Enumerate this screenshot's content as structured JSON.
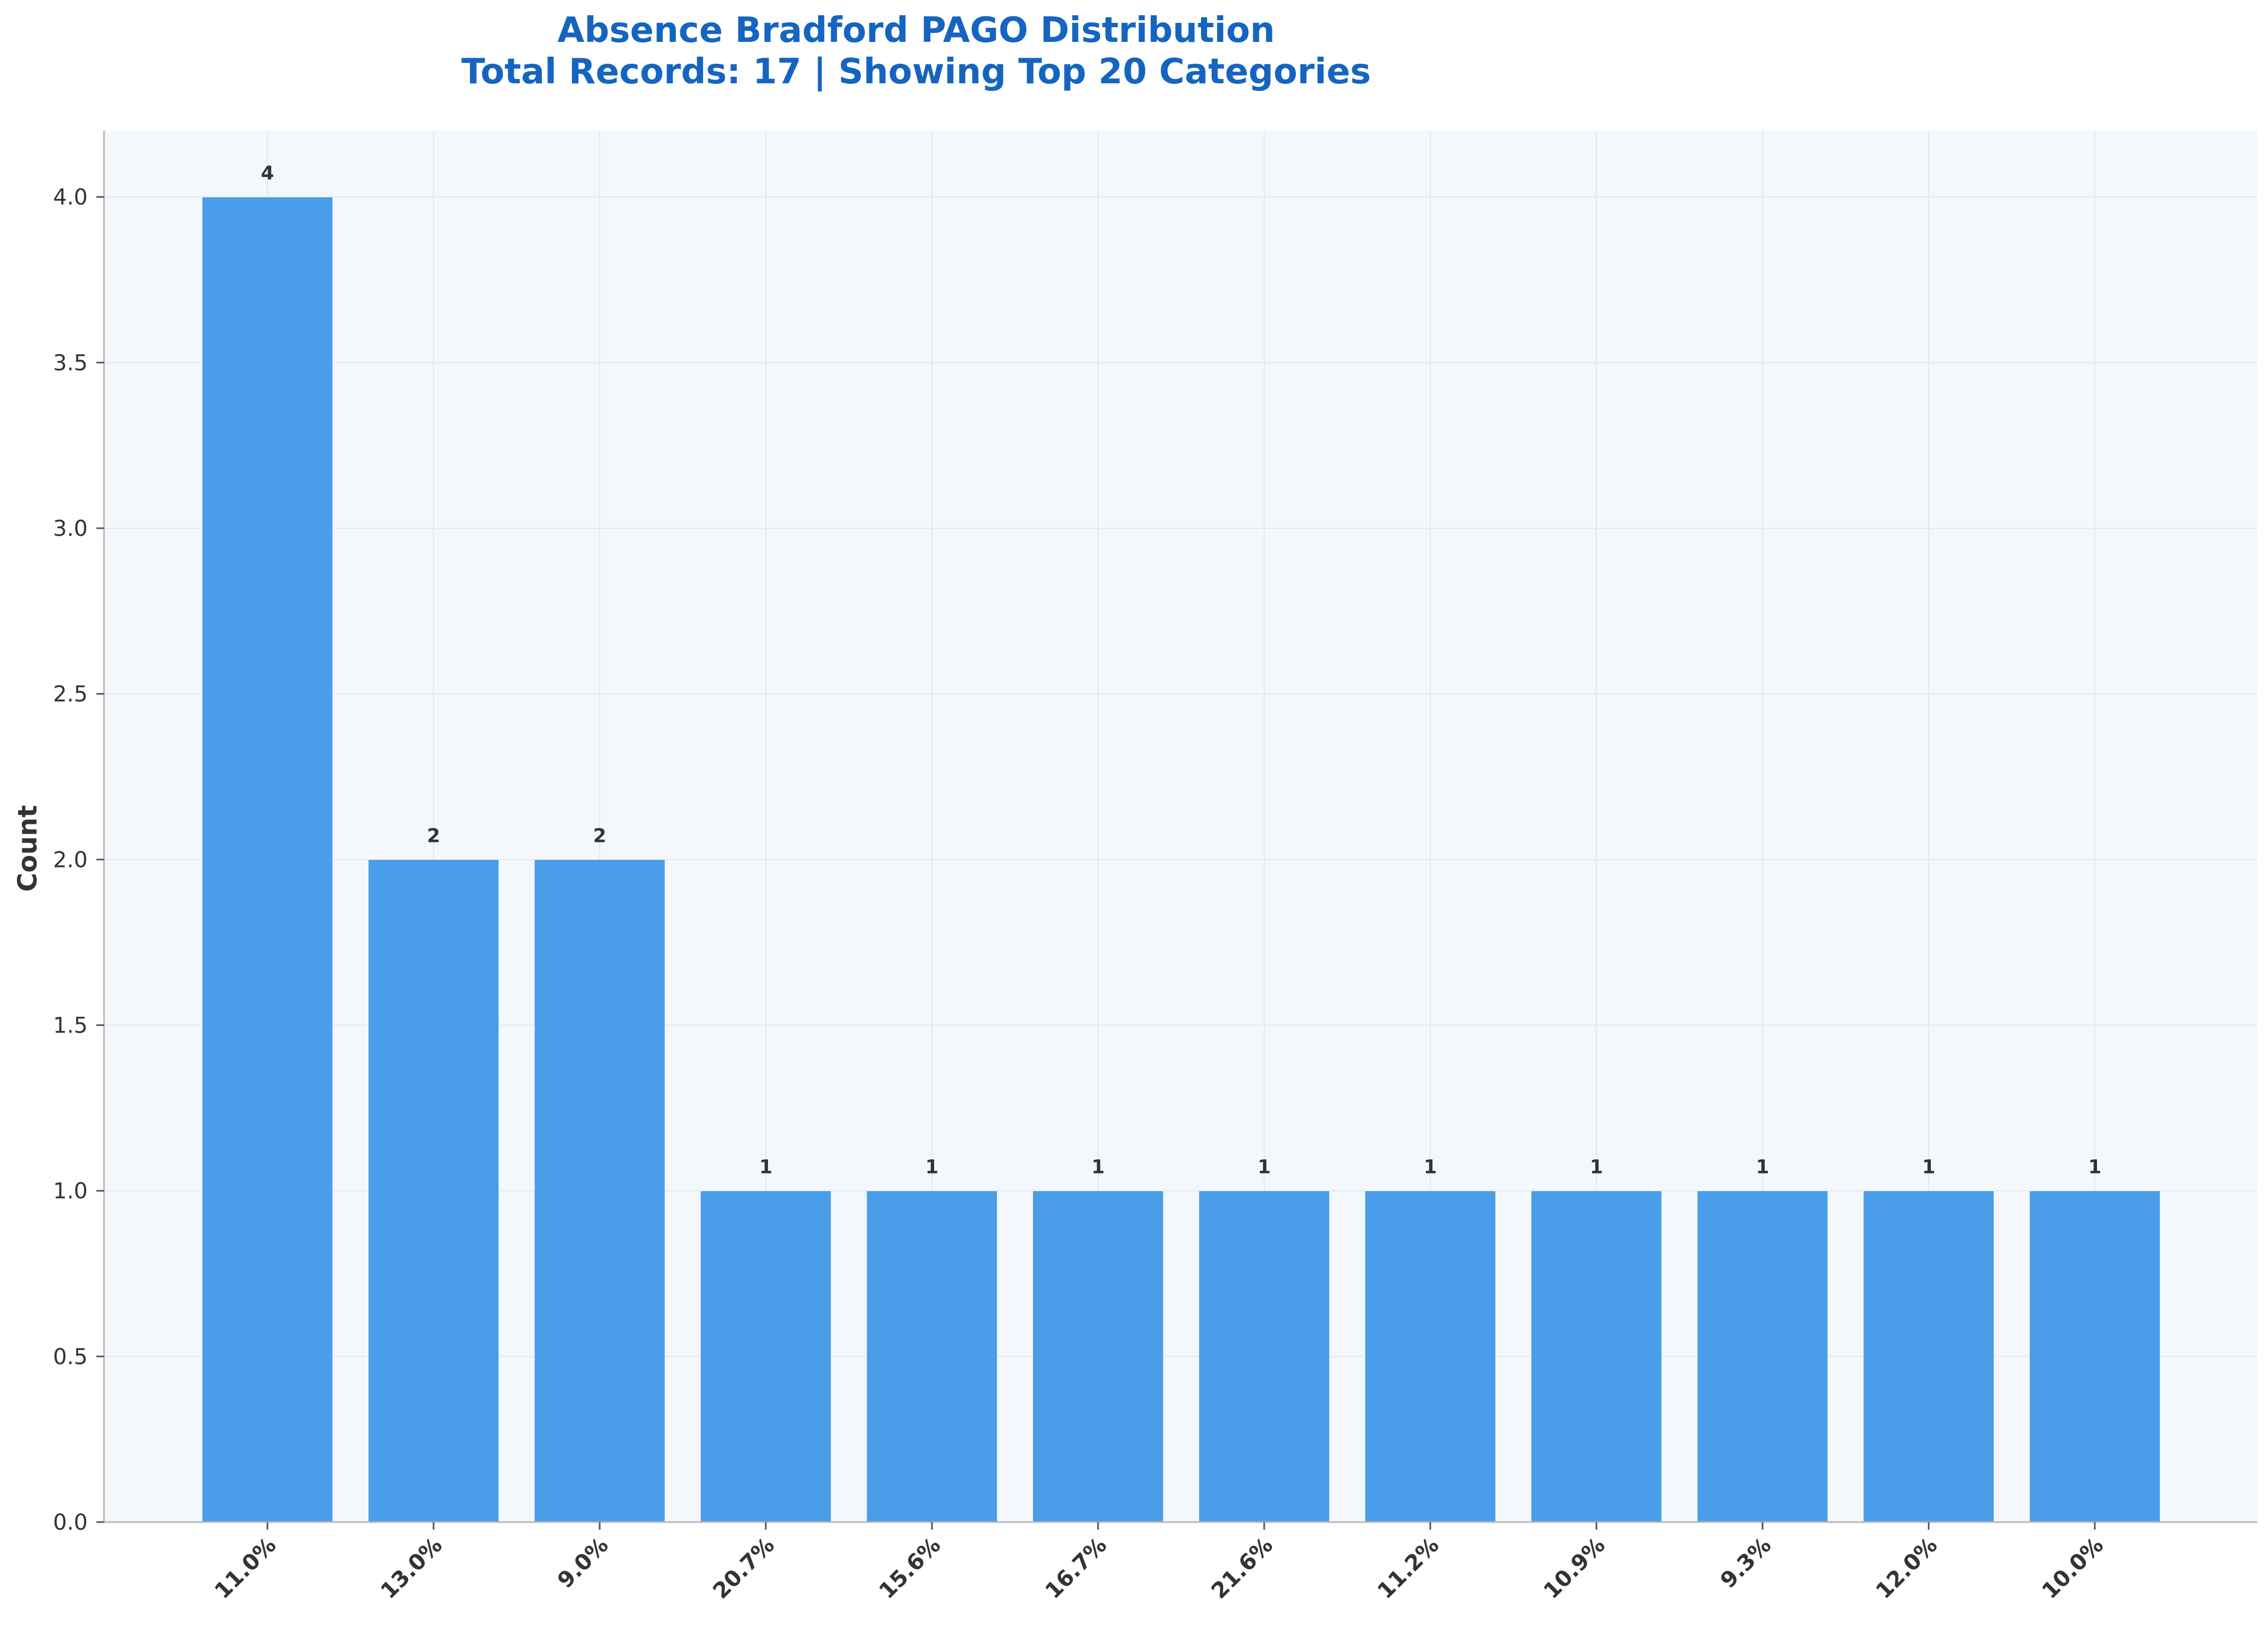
{
  "chart_data": {
    "type": "bar",
    "title": "Absence Bradford PAGO Distribution",
    "subtitle": "Total Records: 17 | Showing Top 20 Categories",
    "xlabel": "",
    "ylabel": "Count",
    "categories": [
      "11.0%",
      "13.0%",
      "9.0%",
      "20.7%",
      "15.6%",
      "16.7%",
      "21.6%",
      "11.2%",
      "10.9%",
      "9.3%",
      "12.0%",
      "10.0%"
    ],
    "values": [
      4,
      2,
      2,
      1,
      1,
      1,
      1,
      1,
      1,
      1,
      1,
      1
    ],
    "data_labels": [
      "4",
      "2",
      "2",
      "1",
      "1",
      "1",
      "1",
      "1",
      "1",
      "1",
      "1",
      "1"
    ],
    "yticks": [
      0.0,
      0.5,
      1.0,
      1.5,
      2.0,
      2.5,
      3.0,
      3.5,
      4.0
    ],
    "ytick_labels": [
      "0.0",
      "0.5",
      "1.0",
      "1.5",
      "2.0",
      "2.5",
      "3.0",
      "3.5",
      "4.0"
    ],
    "ylim": [
      0,
      4.2
    ],
    "grid": true,
    "legend": "none",
    "colors": {
      "bar": "#4A9DE8",
      "title": "#1565C0",
      "plot_background": "#F4F8FD",
      "grid": "#E4E8EE",
      "axis": "#B8B8B8",
      "text": "#333333"
    }
  }
}
